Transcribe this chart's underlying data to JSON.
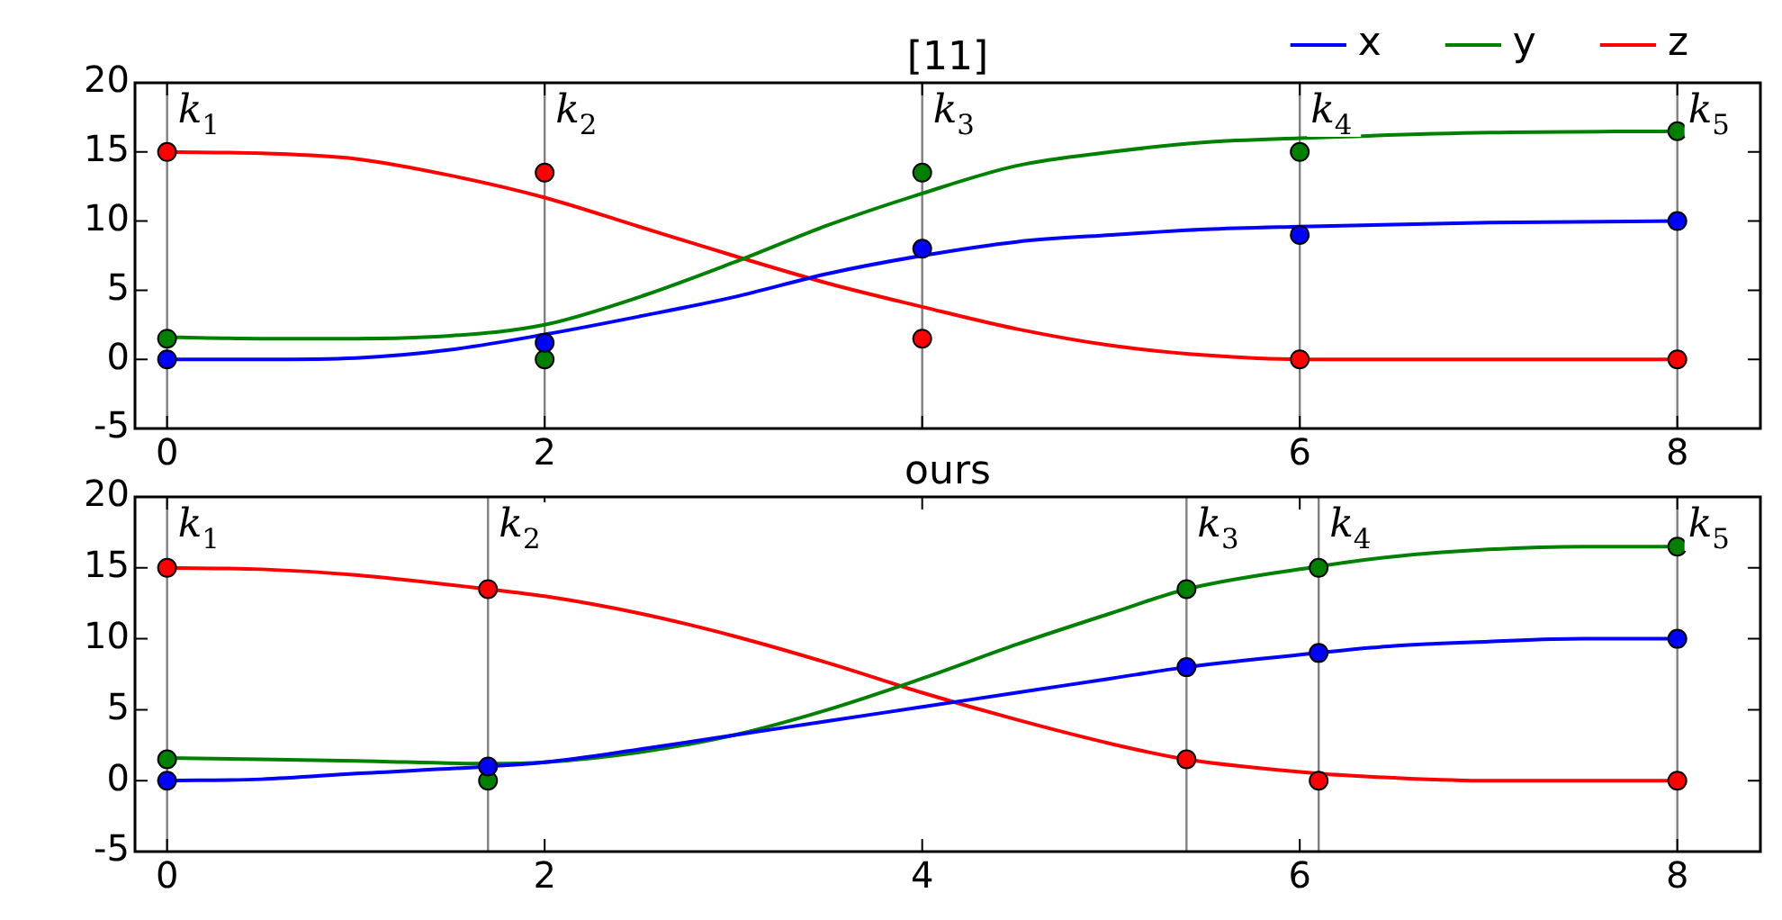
{
  "chart_data": [
    {
      "type": "line",
      "title": "[11]",
      "legend": "top right",
      "xlim": [
        -0.17,
        8.44
      ],
      "ylim": [
        -5,
        20
      ],
      "xticks": [
        0,
        2,
        {
          "value": 4,
          "label": null
        },
        6,
        8
      ],
      "yticks": [
        -5,
        0,
        5,
        10,
        15,
        20
      ],
      "series": [
        {
          "name": "x",
          "color": "#0000ff",
          "x": [
            0,
            0.5,
            1,
            1.5,
            2,
            2.5,
            3,
            3.5,
            4,
            4.5,
            5,
            5.5,
            6,
            7,
            8
          ],
          "values": [
            0,
            0,
            0.1,
            0.7,
            1.8,
            3.1,
            4.5,
            6.2,
            7.5,
            8.5,
            9,
            9.4,
            9.6,
            9.9,
            10
          ]
        },
        {
          "name": "y",
          "color": "#008000",
          "x": [
            0,
            0.5,
            1,
            1.5,
            2,
            2.5,
            3,
            3.5,
            4,
            4.5,
            5,
            5.5,
            6,
            7,
            8
          ],
          "values": [
            1.6,
            1.5,
            1.5,
            1.7,
            2.5,
            4.5,
            7,
            9.7,
            12,
            14,
            15,
            15.7,
            16,
            16.4,
            16.5
          ]
        },
        {
          "name": "z",
          "color": "#ff0000",
          "x": [
            0,
            0.5,
            1,
            1.5,
            2,
            2.5,
            3,
            3.5,
            4,
            4.5,
            5,
            5.5,
            6,
            7,
            8
          ],
          "values": [
            15,
            14.9,
            14.5,
            13.3,
            11.7,
            9.6,
            7.5,
            5.5,
            3.8,
            2.2,
            1,
            0.3,
            0,
            0,
            0
          ]
        },
        {
          "color": "#0000ff",
          "type": "scatter",
          "marker": "circle",
          "x": [
            0,
            2,
            4,
            6,
            8
          ],
          "values": [
            0,
            1.2,
            8,
            9,
            10
          ]
        },
        {
          "color": "#008000",
          "type": "scatter",
          "marker": "circle",
          "x": [
            0,
            2,
            4,
            6,
            8
          ],
          "values": [
            1.5,
            0,
            13.5,
            15,
            16.5
          ]
        },
        {
          "color": "#ff0000",
          "type": "scatter",
          "marker": "circle",
          "x": [
            0,
            2,
            4,
            6,
            8
          ],
          "values": [
            15,
            13.5,
            1.5,
            0,
            0
          ]
        }
      ],
      "ref_lines": [
        {
          "axis": "x",
          "value": 0,
          "label": "k$_{1}$",
          "color": "#808080"
        },
        {
          "axis": "x",
          "value": 2,
          "label": "k$_{2}$",
          "color": "#808080"
        },
        {
          "axis": "x",
          "value": 4,
          "label": "k$_{3}$",
          "color": "#808080"
        },
        {
          "axis": "x",
          "value": 6,
          "label": "k$_{4}$",
          "color": "#808080"
        },
        {
          "axis": "x",
          "value": 8,
          "label": "k$_{5}$",
          "color": "#808080"
        }
      ]
    },
    {
      "type": "line",
      "title": "ours",
      "xlim": [
        -0.17,
        8.44
      ],
      "ylim": [
        -5,
        20
      ],
      "xticks": [
        0,
        2,
        4,
        6,
        8
      ],
      "yticks": [
        -5,
        0,
        5,
        10,
        15,
        20
      ],
      "series": [
        {
          "color": "#0000ff",
          "x": [
            0,
            0.5,
            1,
            1.7,
            2,
            2.5,
            3,
            3.5,
            4,
            4.5,
            5,
            5.4,
            6.1,
            6.5,
            7,
            7.5,
            8
          ],
          "values": [
            0,
            0.1,
            0.5,
            1,
            1.3,
            2.2,
            3.2,
            4.2,
            5.2,
            6.2,
            7.2,
            8,
            9,
            9.5,
            9.8,
            10,
            10
          ]
        },
        {
          "color": "#008000",
          "x": [
            0,
            0.5,
            1,
            1.7,
            2,
            2.5,
            3,
            3.5,
            4,
            4.5,
            5,
            5.4,
            6.1,
            6.5,
            7,
            7.5,
            8
          ],
          "values": [
            1.6,
            1.5,
            1.4,
            1.2,
            1.3,
            2,
            3.2,
            5,
            7.2,
            9.6,
            11.8,
            13.5,
            15.1,
            15.8,
            16.3,
            16.5,
            16.5
          ]
        },
        {
          "color": "#ff0000",
          "x": [
            0,
            0.5,
            1,
            1.7,
            2,
            2.5,
            3,
            3.5,
            4,
            4.5,
            5,
            5.4,
            6.1,
            6.5,
            7,
            7.5,
            8
          ],
          "values": [
            15,
            14.9,
            14.5,
            13.5,
            13,
            11.8,
            10.2,
            8.3,
            6.2,
            4.3,
            2.6,
            1.5,
            0.5,
            0.2,
            0,
            0,
            0
          ]
        },
        {
          "color": "#0000ff",
          "type": "scatter",
          "marker": "circle",
          "x": [
            0,
            1.7,
            5.4,
            6.1,
            8
          ],
          "values": [
            0,
            1,
            8,
            9,
            10
          ]
        },
        {
          "color": "#008000",
          "type": "scatter",
          "marker": "circle",
          "x": [
            0,
            1.7,
            5.4,
            6.1,
            8
          ],
          "values": [
            1.5,
            0,
            13.5,
            15,
            16.5
          ]
        },
        {
          "color": "#ff0000",
          "type": "scatter",
          "marker": "circle",
          "x": [
            0,
            1.7,
            5.4,
            6.1,
            8
          ],
          "values": [
            15,
            13.5,
            1.5,
            0,
            0
          ]
        }
      ],
      "ref_lines": [
        {
          "axis": "x",
          "value": 0,
          "label": "k$_{1}$",
          "color": "#808080"
        },
        {
          "axis": "x",
          "value": 1.7,
          "label": "k$_{2}$",
          "color": "#808080"
        },
        {
          "axis": "x",
          "value": 5.4,
          "label": "k$_{3}$",
          "color": "#808080"
        },
        {
          "axis": "x",
          "value": 6.1,
          "label": "k$_{4}$",
          "color": "#808080"
        },
        {
          "axis": "x",
          "value": 8,
          "label": "k$_{5}$",
          "color": "#808080"
        }
      ]
    }
  ]
}
